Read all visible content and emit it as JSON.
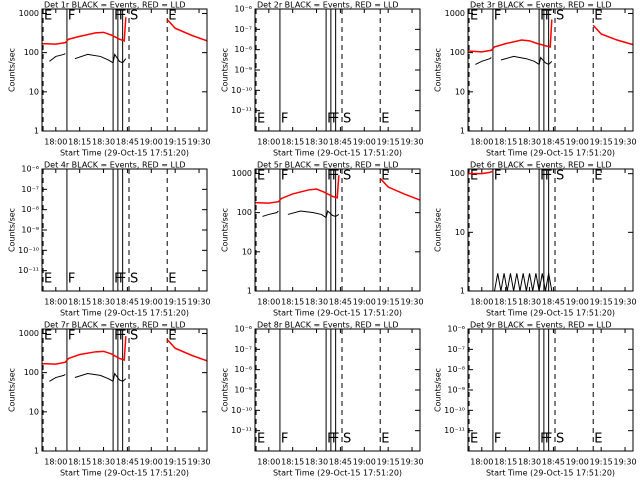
{
  "events": [
    {
      "label": "E",
      "time": "17:52",
      "style": "dashed"
    },
    {
      "label": "F",
      "time": "18:07",
      "style": "solid"
    },
    {
      "label": "F",
      "time": "18:36",
      "style": "solid"
    },
    {
      "label": "F",
      "time": "18:39",
      "style": "solid"
    },
    {
      "time": "18:42",
      "style": "solid"
    },
    {
      "label": "S",
      "time": "18:46",
      "style": "dashed"
    },
    {
      "label": "E",
      "time": "19:10",
      "style": "dashed"
    }
  ],
  "chart_data": [
    {
      "type": "line",
      "title": "Det 1r BLACK = Events, RED = LLD",
      "xlabel": "Start Time (29-Oct-15 17:51:20)",
      "ylabel": "Counts/sec",
      "log_y": true,
      "xlim": [
        "17:51:20",
        "19:35"
      ],
      "xticks": [
        "18:00",
        "18:15",
        "18:30",
        "18:45",
        "19:00",
        "19:15",
        "19:30"
      ],
      "ylim": [
        1,
        1300
      ],
      "yticks": [
        1,
        10,
        100,
        1000
      ],
      "series": [
        {
          "name": "Events",
          "color": "#000000",
          "x": [
            "17:56",
            "18:00",
            "18:05",
            "18:06",
            "18:08",
            "18:12",
            "18:20",
            "18:28",
            "18:33",
            "18:36",
            "18:37",
            "18:40",
            "18:42",
            "18:44"
          ],
          "values": [
            60,
            80,
            90,
            95,
            null,
            70,
            90,
            80,
            65,
            55,
            90,
            60,
            55,
            70
          ]
        },
        {
          "name": "LLD",
          "color": "#ff0000",
          "x": [
            "17:51:20",
            "18:00",
            "18:06",
            "18:08",
            "18:15",
            "18:25",
            "18:30",
            "18:35",
            "18:40",
            "18:43",
            "18:44",
            "18:45",
            "19:10",
            "19:15",
            "19:25",
            "19:35"
          ],
          "values": [
            170,
            165,
            180,
            220,
            260,
            320,
            330,
            280,
            220,
            200,
            800,
            null,
            700,
            420,
            280,
            200
          ]
        }
      ]
    },
    {
      "type": "line",
      "title": "Det 2r BLACK = Events, RED = LLD",
      "xlabel": "Start Time (29-Oct-15 17:51:20)",
      "ylabel": "Counts/sec",
      "log_y": true,
      "xlim": [
        "17:51:20",
        "19:35"
      ],
      "xticks": [
        "18:00",
        "18:15",
        "18:30",
        "18:45",
        "19:00",
        "19:15",
        "19:30"
      ],
      "ylim": [
        1e-12,
        1e-06
      ],
      "yticks": [
        {
          "value": 1e-06,
          "label": "10⁻⁶"
        },
        {
          "value": 1e-07,
          "label": "10⁻⁷"
        },
        {
          "value": 1e-08,
          "label": "10⁻⁸"
        },
        {
          "value": 1e-09,
          "label": "10⁻⁹"
        },
        {
          "value": 1e-10,
          "label": "10⁻¹⁰"
        },
        {
          "value": 1e-11,
          "label": "10⁻¹¹"
        }
      ],
      "series": []
    },
    {
      "type": "line",
      "title": "Det 3r BLACK = Events, RED = LLD",
      "xlabel": "Start Time (29-Oct-15 17:51:20)",
      "ylabel": "Counts/sec",
      "log_y": true,
      "xlim": [
        "17:51:20",
        "19:35"
      ],
      "xticks": [
        "18:00",
        "18:15",
        "18:30",
        "18:45",
        "19:00",
        "19:15",
        "19:30"
      ],
      "ylim": [
        1,
        1300
      ],
      "yticks": [
        1,
        10,
        100,
        1000
      ],
      "series": [
        {
          "name": "Events",
          "color": "#000000",
          "x": [
            "17:56",
            "18:00",
            "18:05",
            "18:06",
            "18:08",
            "18:12",
            "18:20",
            "18:28",
            "18:33",
            "18:36",
            "18:37",
            "18:40",
            "18:42",
            "18:44"
          ],
          "values": [
            50,
            60,
            70,
            75,
            null,
            65,
            80,
            70,
            60,
            50,
            75,
            55,
            50,
            60
          ]
        },
        {
          "name": "LLD",
          "color": "#ff0000",
          "x": [
            "17:51:20",
            "18:00",
            "18:06",
            "18:08",
            "18:15",
            "18:25",
            "18:30",
            "18:35",
            "18:40",
            "18:43",
            "18:44",
            "18:45",
            "19:10",
            "19:15",
            "19:25",
            "19:35"
          ],
          "values": [
            110,
            105,
            115,
            140,
            170,
            210,
            200,
            170,
            150,
            140,
            700,
            null,
            500,
            300,
            210,
            160
          ]
        }
      ]
    },
    {
      "type": "line",
      "title": "Det 4r BLACK = Events, RED = LLD",
      "xlabel": "Start Time (29-Oct-15 17:51:20)",
      "ylabel": "Counts/sec",
      "log_y": true,
      "xlim": [
        "17:51:20",
        "19:35"
      ],
      "xticks": [
        "18:00",
        "18:15",
        "18:30",
        "18:45",
        "19:00",
        "19:15",
        "19:30"
      ],
      "ylim": [
        1e-12,
        1e-06
      ],
      "yticks": [
        {
          "value": 1e-06,
          "label": "10⁻⁶"
        },
        {
          "value": 1e-07,
          "label": "10⁻⁷"
        },
        {
          "value": 1e-08,
          "label": "10⁻⁸"
        },
        {
          "value": 1e-09,
          "label": "10⁻⁹"
        },
        {
          "value": 1e-10,
          "label": "10⁻¹⁰"
        },
        {
          "value": 1e-11,
          "label": "10⁻¹¹"
        }
      ],
      "series": []
    },
    {
      "type": "line",
      "title": "Det 5r BLACK = Events, RED = LLD",
      "xlabel": "Start Time (29-Oct-15 17:51:20)",
      "ylabel": "Counts/sec",
      "log_y": true,
      "xlim": [
        "17:51:20",
        "19:35"
      ],
      "xticks": [
        "18:00",
        "18:15",
        "18:30",
        "18:45",
        "19:00",
        "19:15",
        "19:30"
      ],
      "ylim": [
        1,
        1300
      ],
      "yticks": [
        1,
        10,
        100,
        1000
      ],
      "series": [
        {
          "name": "Events",
          "color": "#000000",
          "x": [
            "17:56",
            "18:00",
            "18:05",
            "18:06",
            "18:08",
            "18:12",
            "18:20",
            "18:28",
            "18:33",
            "18:36",
            "18:37",
            "18:40",
            "18:42",
            "18:44"
          ],
          "values": [
            80,
            90,
            100,
            110,
            null,
            90,
            110,
            100,
            90,
            75,
            110,
            85,
            80,
            90
          ]
        },
        {
          "name": "LLD",
          "color": "#ff0000",
          "x": [
            "17:51:20",
            "18:00",
            "18:06",
            "18:08",
            "18:15",
            "18:25",
            "18:30",
            "18:35",
            "18:40",
            "18:43",
            "18:44",
            "18:45",
            "19:10",
            "19:15",
            "19:25",
            "19:35"
          ],
          "values": [
            180,
            175,
            190,
            230,
            300,
            380,
            400,
            330,
            260,
            240,
            900,
            null,
            750,
            450,
            300,
            210
          ]
        }
      ]
    },
    {
      "type": "line",
      "title": "Det 6r BLACK = Events, RED = LLD",
      "xlabel": "Start Time (29-Oct-15 17:51:20)",
      "ylabel": "Counts/sec",
      "log_y": true,
      "xlim": [
        "17:51:20",
        "19:35"
      ],
      "xticks": [
        "18:00",
        "18:15",
        "18:30",
        "18:45",
        "19:00",
        "19:15",
        "19:30"
      ],
      "ylim": [
        1,
        120
      ],
      "yticks": [
        1,
        10,
        100
      ],
      "series": [
        {
          "name": "Events",
          "color": "#000000",
          "x": [
            "18:08",
            "18:10",
            "18:12",
            "18:14",
            "18:16",
            "18:18",
            "18:20",
            "18:22",
            "18:24",
            "18:26",
            "18:28",
            "18:30",
            "18:32",
            "18:34",
            "18:36",
            "18:38",
            "18:40",
            "18:42",
            "18:44"
          ],
          "values": [
            1,
            2,
            1,
            2,
            1,
            2,
            1,
            2,
            1,
            2,
            1,
            2,
            1,
            2,
            1,
            2,
            1,
            2,
            1
          ]
        },
        {
          "name": "LLD",
          "color": "#ff0000",
          "x": [
            "17:51:20",
            "18:00",
            "18:05",
            "18:07"
          ],
          "values": [
            100,
            100,
            105,
            110
          ]
        }
      ]
    },
    {
      "type": "line",
      "title": "Det 7r BLACK = Events, RED = LLD",
      "xlabel": "Start Time (29-Oct-15 17:51:20)",
      "ylabel": "Counts/sec",
      "log_y": true,
      "xlim": [
        "17:51:20",
        "19:35"
      ],
      "xticks": [
        "18:00",
        "18:15",
        "18:30",
        "18:45",
        "19:00",
        "19:15",
        "19:30"
      ],
      "ylim": [
        1,
        1300
      ],
      "yticks": [
        1,
        10,
        100,
        1000
      ],
      "series": [
        {
          "name": "Events",
          "color": "#000000",
          "x": [
            "17:56",
            "18:00",
            "18:05",
            "18:06",
            "18:08",
            "18:12",
            "18:20",
            "18:28",
            "18:33",
            "18:36",
            "18:37",
            "18:40",
            "18:42",
            "18:44"
          ],
          "values": [
            60,
            75,
            85,
            90,
            null,
            75,
            95,
            85,
            70,
            60,
            95,
            65,
            60,
            70
          ]
        },
        {
          "name": "LLD",
          "color": "#ff0000",
          "x": [
            "17:51:20",
            "18:00",
            "18:06",
            "18:08",
            "18:15",
            "18:25",
            "18:30",
            "18:35",
            "18:40",
            "18:43",
            "18:44",
            "18:45",
            "19:10",
            "19:15",
            "19:25",
            "19:35"
          ],
          "values": [
            170,
            165,
            185,
            230,
            290,
            340,
            350,
            300,
            230,
            210,
            850,
            null,
            700,
            420,
            280,
            200
          ]
        }
      ]
    },
    {
      "type": "line",
      "title": "Det 8r BLACK = Events, RED = LLD",
      "xlabel": "Start Time (29-Oct-15 17:51:20)",
      "ylabel": "Counts/sec",
      "log_y": true,
      "xlim": [
        "17:51:20",
        "19:35"
      ],
      "xticks": [
        "18:00",
        "18:15",
        "18:30",
        "18:45",
        "19:00",
        "19:15",
        "19:30"
      ],
      "ylim": [
        1e-12,
        1e-06
      ],
      "yticks": [
        {
          "value": 1e-06,
          "label": "10⁻⁶"
        },
        {
          "value": 1e-07,
          "label": "10⁻⁷"
        },
        {
          "value": 1e-08,
          "label": "10⁻⁸"
        },
        {
          "value": 1e-09,
          "label": "10⁻⁹"
        },
        {
          "value": 1e-10,
          "label": "10⁻¹⁰"
        },
        {
          "value": 1e-11,
          "label": "10⁻¹¹"
        }
      ],
      "series": []
    },
    {
      "type": "line",
      "title": "Det 9r BLACK = Events, RED = LLD",
      "xlabel": "Start Time (29-Oct-15 17:51:20)",
      "ylabel": "Counts/sec",
      "log_y": true,
      "xlim": [
        "17:51:20",
        "19:35"
      ],
      "xticks": [
        "18:00",
        "18:15",
        "18:30",
        "18:45",
        "19:00",
        "19:15",
        "19:30"
      ],
      "ylim": [
        1e-12,
        1e-06
      ],
      "yticks": [
        {
          "value": 1e-06,
          "label": "10⁻⁶"
        },
        {
          "value": 1e-07,
          "label": "10⁻⁷"
        },
        {
          "value": 1e-08,
          "label": "10⁻⁸"
        },
        {
          "value": 1e-09,
          "label": "10⁻⁹"
        },
        {
          "value": 1e-10,
          "label": "10⁻¹⁰"
        },
        {
          "value": 1e-11,
          "label": "10⁻¹¹"
        }
      ],
      "series": []
    }
  ]
}
